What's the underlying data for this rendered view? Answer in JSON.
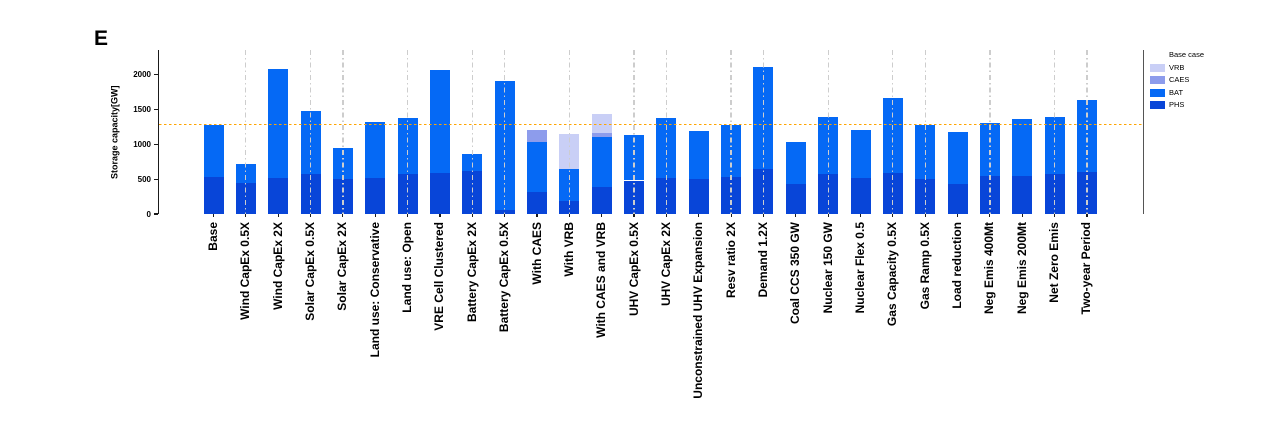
{
  "chart_data": {
    "type": "bar",
    "stacked": true,
    "panel_label": "E",
    "ylabel_line1": "Storage capacity",
    "ylabel_line2": "[GW]",
    "yticks": [
      0,
      500,
      1000,
      1500,
      2000
    ],
    "ylim": [
      0,
      2350
    ],
    "grid": "vertical-dashdot-over-bars",
    "legend_position": "right-outside",
    "categories": [
      "Base",
      "Wind CapEx 0.5X",
      "Wind CapEx 2X",
      "Solar CapEx 0.5X",
      "Solar CapEx 2X",
      "Land use: Conservative",
      "Land use: Open",
      "VRE Cell Clustered",
      "Battery CapEx 2X",
      "Battery CapEx 0.5X",
      "With CAES",
      "With VRB",
      "With CAES and VRB",
      "UHV CapEx 0.5X",
      "UHV CapEx 2X",
      "Unconstrained UHV Expansion",
      "Resv ratio 2X",
      "Demand 1.2X",
      "Coal CCS 350 GW",
      "Nuclear 150 GW",
      "Nuclear Flex 0.5",
      "Gas Capacity 0.5X",
      "Gas Ramp 0.5X",
      "Load reduction",
      "Neg Emis 400Mt",
      "Neg Emis 200Mt",
      "Net Zero Emis",
      "Two-year Period"
    ],
    "series": [
      {
        "name": "PHS",
        "color": "#0845d8",
        "values": [
          530,
          450,
          520,
          570,
          500,
          520,
          580,
          590,
          610,
          60,
          310,
          180,
          390,
          480,
          510,
          500,
          530,
          640,
          430,
          580,
          520,
          590,
          500,
          430,
          550,
          550,
          580,
          600
        ]
      },
      {
        "name": "BAT",
        "color": "#0569f5",
        "values": [
          750,
          260,
          1560,
          910,
          440,
          800,
          790,
          1480,
          250,
          1850,
          720,
          460,
          720,
          650,
          870,
          690,
          740,
          1460,
          600,
          810,
          690,
          1070,
          770,
          740,
          750,
          810,
          810,
          1030
        ]
      },
      {
        "name": "CAES",
        "color": "#8d9cec",
        "values": [
          0,
          0,
          0,
          0,
          0,
          0,
          0,
          0,
          0,
          0,
          170,
          0,
          55,
          0,
          0,
          0,
          0,
          0,
          0,
          0,
          0,
          0,
          0,
          0,
          0,
          0,
          0,
          0
        ]
      },
      {
        "name": "VRB",
        "color": "#c9cff6",
        "values": [
          0,
          0,
          0,
          0,
          0,
          0,
          0,
          0,
          0,
          0,
          0,
          500,
          275,
          0,
          0,
          0,
          0,
          0,
          0,
          0,
          0,
          0,
          0,
          0,
          0,
          0,
          0,
          0
        ]
      }
    ],
    "baseline": {
      "label": "Base case",
      "value": 1280,
      "color": "#FFA500",
      "style": "dotted"
    },
    "legend_items": [
      {
        "label": "Base case",
        "color": "#FFA500",
        "swatch": "dotted-line"
      },
      {
        "label": "VRB",
        "color": "#c9cff6",
        "swatch": "rect"
      },
      {
        "label": "CAES",
        "color": "#8d9cec",
        "swatch": "rect"
      },
      {
        "label": "BAT",
        "color": "#0569f5",
        "swatch": "rect"
      },
      {
        "label": "PHS",
        "color": "#0845d8",
        "swatch": "rect"
      }
    ],
    "gridline_category_indices": [
      1,
      3,
      4,
      6,
      8,
      9,
      11,
      13,
      14,
      16,
      17,
      19,
      21,
      22,
      24,
      26,
      27
    ]
  }
}
